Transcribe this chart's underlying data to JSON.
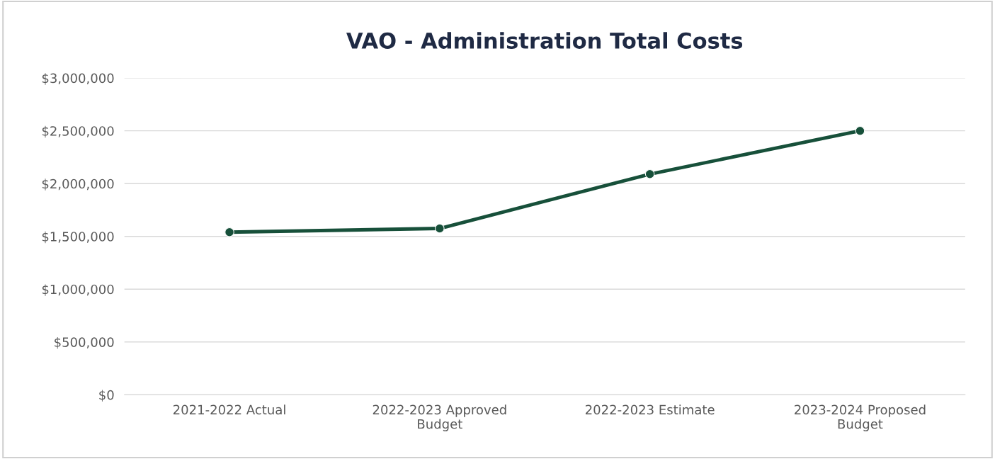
{
  "chart_data": {
    "type": "line",
    "title": "VAO - Administration Total Costs",
    "categories": [
      "2021-2022 Actual",
      "2022-2023 Approved Budget",
      "2022-2023 Estimate",
      "2023-2024 Proposed Budget"
    ],
    "series": [
      {
        "color": "#17503a",
        "values": [
          1540000,
          1575000,
          2090000,
          2500000
        ]
      }
    ],
    "ylim": [
      0,
      3000000
    ],
    "yticks": [
      {
        "value": 0,
        "label": "$0"
      },
      {
        "value": 500000,
        "label": "$500,000"
      },
      {
        "value": 1000000,
        "label": "$1,000,000"
      },
      {
        "value": 1500000,
        "label": "$1,500,000"
      },
      {
        "value": 2000000,
        "label": "$2,000,000"
      },
      {
        "value": 2500000,
        "label": "$2,500,000"
      },
      {
        "value": 3000000,
        "label": "$3,000,000"
      }
    ],
    "grid": "y",
    "marker": "circle",
    "line_style": "solid",
    "legend": false
  }
}
